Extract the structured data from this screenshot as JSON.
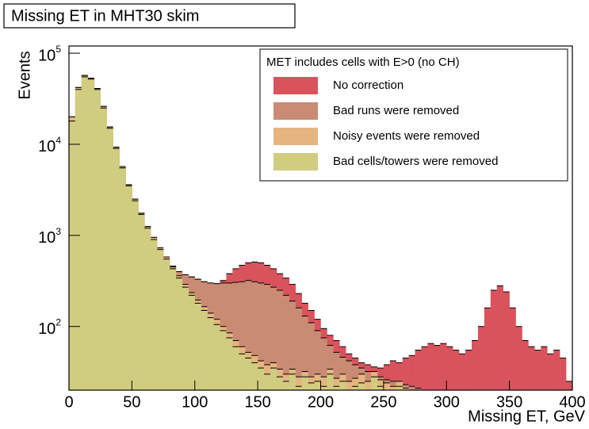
{
  "chart_data": {
    "type": "histogram",
    "title": "Missing ET in MHT30 skim",
    "xlabel": "Missing ET, GeV",
    "ylabel": "Events",
    "legend_title": "MET includes cells with E>0 (no CH)",
    "legend": "upper right",
    "log_y": true,
    "bins": [
      0,
      5,
      10,
      15,
      20,
      25,
      30,
      35,
      40,
      45,
      50,
      55,
      60,
      65,
      70,
      75,
      80,
      85,
      90,
      95,
      100,
      105,
      110,
      115,
      120,
      125,
      130,
      135,
      140,
      145,
      150,
      155,
      160,
      165,
      170,
      175,
      180,
      185,
      190,
      195,
      200,
      205,
      210,
      215,
      220,
      225,
      230,
      235,
      240,
      245,
      250,
      255,
      260,
      265,
      270,
      275,
      280,
      285,
      290,
      295,
      300,
      305,
      310,
      315,
      320,
      325,
      330,
      335,
      340,
      345,
      350,
      355,
      360,
      365,
      370,
      375,
      380,
      385,
      390,
      395,
      400
    ],
    "xlim": [
      0,
      400
    ],
    "xticks": [
      0,
      50,
      100,
      150,
      200,
      250,
      300,
      350,
      400
    ],
    "ylim": [
      20,
      120000
    ],
    "yticks": [
      {
        "value": 100,
        "label": "10^2"
      },
      {
        "value": 1000,
        "label": "10^3"
      },
      {
        "value": 10000,
        "label": "10^4"
      },
      {
        "value": 100000,
        "label": "10^5"
      }
    ],
    "series": [
      {
        "name": "No correction",
        "color": "#d9535d",
        "values": [
          20000,
          42000,
          57000,
          53000,
          41000,
          26000,
          15500,
          9300,
          5700,
          3600,
          2500,
          1750,
          1250,
          950,
          730,
          580,
          460,
          400,
          370,
          350,
          330,
          310,
          300,
          295,
          320,
          380,
          430,
          470,
          500,
          510,
          500,
          470,
          430,
          380,
          340,
          290,
          230,
          180,
          150,
          120,
          95,
          80,
          70,
          60,
          50,
          45,
          40,
          38,
          36,
          35,
          38,
          42,
          40,
          45,
          48,
          55,
          60,
          65,
          62,
          65,
          60,
          55,
          50,
          55,
          70,
          100,
          160,
          250,
          280,
          240,
          160,
          100,
          70,
          60,
          55,
          60,
          50,
          55,
          45,
          25
        ]
      },
      {
        "name": "Bad runs were removed",
        "color": "#c98b73",
        "values": [
          20000,
          42000,
          57000,
          53000,
          41000,
          26000,
          15500,
          9300,
          5700,
          3600,
          2500,
          1750,
          1250,
          950,
          730,
          580,
          460,
          400,
          370,
          350,
          330,
          310,
          300,
          295,
          300,
          300,
          305,
          310,
          320,
          310,
          300,
          290,
          270,
          250,
          220,
          190,
          160,
          130,
          110,
          90,
          75,
          62,
          52,
          46,
          42,
          38,
          35,
          32,
          30,
          28,
          26,
          25,
          24,
          23,
          22,
          21,
          20,
          19,
          0,
          0,
          0,
          0,
          0,
          0,
          0,
          0,
          0,
          0,
          0,
          0,
          0,
          0,
          0,
          0,
          0,
          0,
          0,
          0,
          0,
          0
        ]
      },
      {
        "name": "Noisy events were removed",
        "color": "#e6b47f",
        "values": [
          20000,
          42000,
          57000,
          53000,
          41000,
          26000,
          15500,
          9300,
          5700,
          3600,
          2500,
          1750,
          1250,
          950,
          730,
          580,
          450,
          360,
          290,
          235,
          195,
          165,
          140,
          120,
          100,
          85,
          70,
          60,
          52,
          48,
          42,
          38,
          40,
          34,
          30,
          34,
          28,
          32,
          28,
          30,
          28,
          34,
          27,
          30,
          25,
          27,
          30,
          25,
          32,
          26,
          24,
          22,
          25,
          21,
          20,
          19,
          0,
          0,
          0,
          0,
          0,
          0,
          0,
          0,
          0,
          0,
          0,
          0,
          0,
          0,
          0,
          0,
          0,
          0,
          0,
          0,
          0,
          0,
          0,
          0
        ]
      },
      {
        "name": "Bad cells/towers were removed",
        "color": "#d1cd80",
        "values": [
          18000,
          40000,
          55000,
          52000,
          40000,
          25000,
          15000,
          9000,
          5500,
          3500,
          2400,
          1700,
          1200,
          900,
          700,
          550,
          430,
          340,
          270,
          220,
          180,
          150,
          125,
          105,
          90,
          75,
          60,
          50,
          45,
          40,
          35,
          30,
          35,
          28,
          25,
          30,
          22,
          28,
          24,
          25,
          22,
          30,
          22,
          25,
          20,
          22,
          24,
          20,
          28,
          22,
          20,
          18,
          22,
          18,
          0,
          0,
          0,
          0,
          0,
          0,
          0,
          0,
          0,
          0,
          0,
          0,
          0,
          0,
          0,
          0,
          0,
          0,
          0,
          0,
          0,
          0,
          0,
          0,
          0,
          0
        ]
      }
    ]
  }
}
